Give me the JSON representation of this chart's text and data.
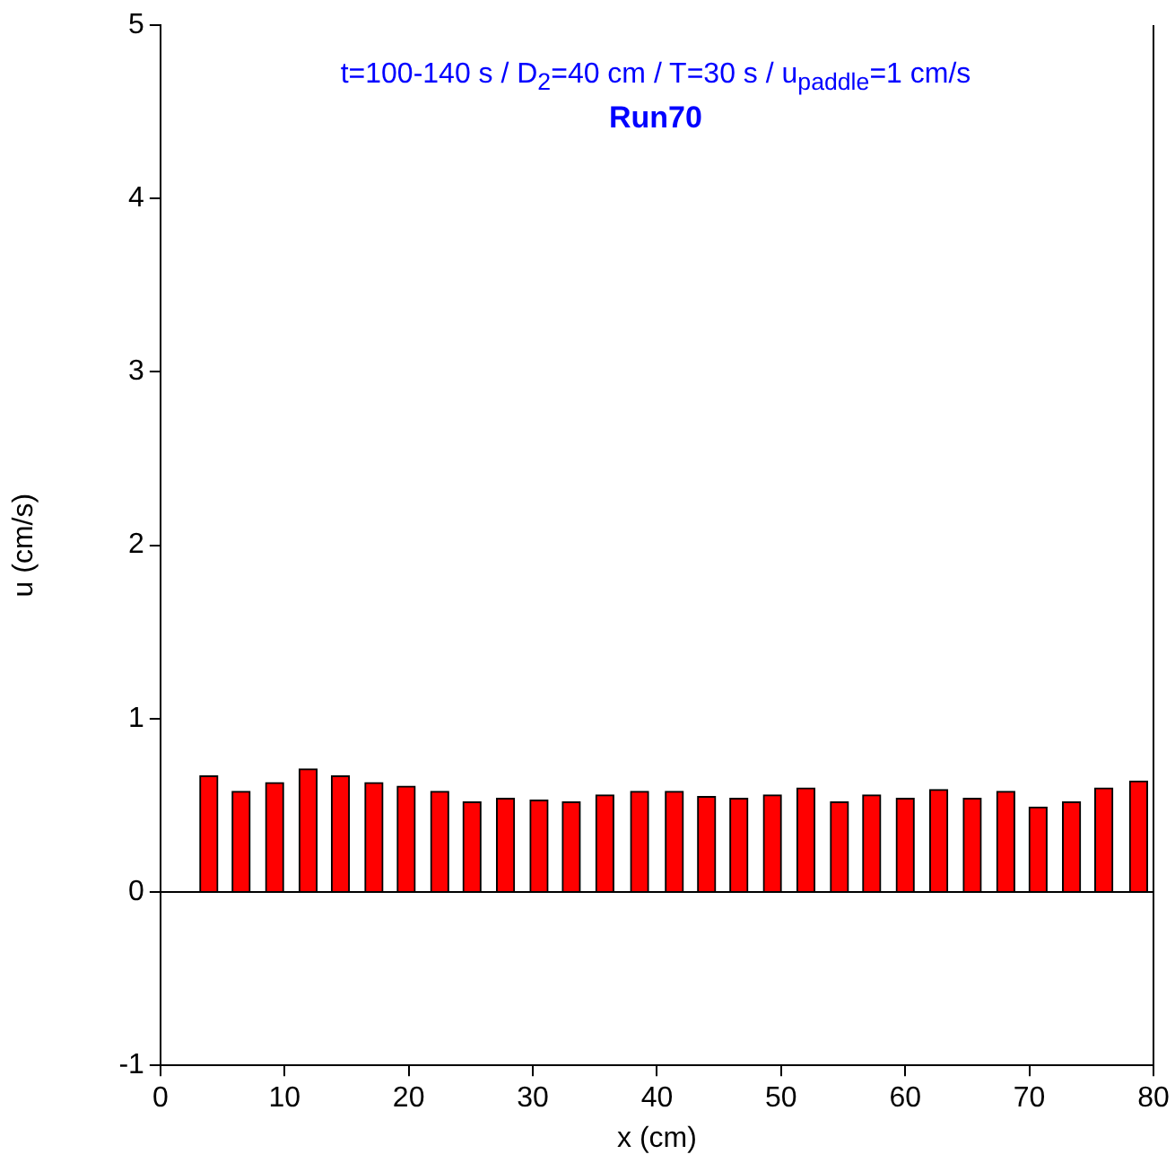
{
  "chart_data": {
    "type": "bar",
    "title": "t=100-140 s / D$_{2}$=40 cm / T=30 s / u$_{paddle}$=1 cm/s",
    "subtitle": "Run70",
    "xlabel": "x (cm)",
    "ylabel": "u (cm/s)",
    "x": [
      3.9,
      6.5,
      9.2,
      11.9,
      14.5,
      17.2,
      19.8,
      22.5,
      25.1,
      27.8,
      30.5,
      33.1,
      35.8,
      38.6,
      41.4,
      44.0,
      46.6,
      49.3,
      52.0,
      54.7,
      57.3,
      60.0,
      62.7,
      65.4,
      68.1,
      70.7,
      73.4,
      76.0,
      78.8
    ],
    "values": [
      0.67,
      0.58,
      0.63,
      0.71,
      0.67,
      0.63,
      0.61,
      0.58,
      0.52,
      0.54,
      0.53,
      0.52,
      0.56,
      0.58,
      0.58,
      0.55,
      0.54,
      0.56,
      0.6,
      0.52,
      0.56,
      0.54,
      0.59,
      0.54,
      0.58,
      0.49,
      0.52,
      0.6,
      0.64
    ],
    "color": "#ff0000",
    "xlim": [
      0,
      80
    ],
    "xticks": [
      0,
      10,
      20,
      30,
      40,
      50,
      60,
      70,
      80
    ],
    "ylim": [
      -1,
      5
    ],
    "yticks": [
      -1,
      0,
      1,
      2,
      3,
      4,
      5
    ],
    "grid": false,
    "ref_lines": [
      {
        "axis": "y",
        "value": 0
      }
    ],
    "legend": false
  }
}
